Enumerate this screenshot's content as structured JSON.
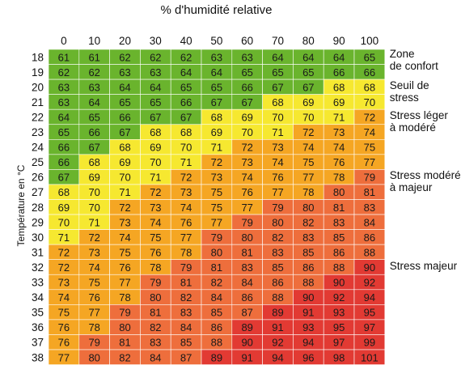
{
  "chart_data": {
    "type": "heatmap",
    "title": "% d'humidité relative",
    "ylabel": "Température en °C",
    "x": [
      0,
      10,
      20,
      30,
      40,
      50,
      60,
      70,
      80,
      90,
      100
    ],
    "y": [
      18,
      19,
      20,
      21,
      22,
      23,
      24,
      25,
      26,
      27,
      28,
      29,
      30,
      31,
      32,
      33,
      34,
      35,
      36,
      37,
      38
    ],
    "values": [
      [
        61,
        61,
        62,
        62,
        62,
        63,
        63,
        64,
        64,
        64,
        65
      ],
      [
        62,
        62,
        63,
        63,
        64,
        64,
        65,
        65,
        65,
        66,
        66
      ],
      [
        63,
        63,
        64,
        64,
        65,
        65,
        66,
        67,
        67,
        68,
        68
      ],
      [
        63,
        64,
        65,
        65,
        66,
        67,
        67,
        68,
        69,
        69,
        70
      ],
      [
        64,
        65,
        66,
        67,
        67,
        68,
        69,
        70,
        70,
        71,
        72
      ],
      [
        65,
        66,
        67,
        68,
        68,
        69,
        70,
        71,
        72,
        73,
        74
      ],
      [
        66,
        67,
        68,
        69,
        70,
        71,
        72,
        73,
        74,
        74,
        75
      ],
      [
        66,
        68,
        69,
        70,
        71,
        72,
        73,
        74,
        75,
        76,
        77
      ],
      [
        67,
        69,
        70,
        71,
        72,
        73,
        74,
        76,
        77,
        78,
        79
      ],
      [
        68,
        70,
        71,
        72,
        73,
        75,
        76,
        77,
        78,
        80,
        81
      ],
      [
        69,
        70,
        72,
        73,
        74,
        75,
        77,
        79,
        80,
        81,
        83
      ],
      [
        70,
        71,
        73,
        74,
        76,
        77,
        79,
        80,
        82,
        83,
        84
      ],
      [
        71,
        72,
        74,
        75,
        77,
        79,
        80,
        82,
        83,
        85,
        86
      ],
      [
        72,
        73,
        75,
        76,
        78,
        80,
        81,
        83,
        85,
        86,
        88
      ],
      [
        72,
        74,
        76,
        78,
        79,
        81,
        83,
        85,
        86,
        88,
        90
      ],
      [
        73,
        75,
        77,
        79,
        81,
        82,
        84,
        86,
        88,
        90,
        92
      ],
      [
        74,
        76,
        78,
        80,
        82,
        84,
        86,
        88,
        90,
        92,
        94
      ],
      [
        75,
        77,
        79,
        81,
        83,
        85,
        87,
        89,
        91,
        93,
        95
      ],
      [
        76,
        78,
        80,
        82,
        84,
        86,
        89,
        91,
        93,
        95,
        97
      ],
      [
        76,
        79,
        81,
        83,
        85,
        88,
        90,
        92,
        94,
        97,
        99
      ],
      [
        77,
        80,
        82,
        84,
        87,
        89,
        91,
        94,
        96,
        98,
        101
      ]
    ],
    "zones": [
      {
        "label": "Zone de confort",
        "lines": [
          "Zone",
          "de confort"
        ],
        "color": "#6ab42d"
      },
      {
        "label": "Seuil de stress",
        "lines": [
          "Seuil de stress"
        ],
        "color": "#f6e830"
      },
      {
        "label": "Stress léger à modéré",
        "lines": [
          "Stress léger",
          "à modéré"
        ],
        "color": "#f5a623"
      },
      {
        "label": "Stress modéré à majeur",
        "lines": [
          "Stress modéré",
          "à majeur"
        ],
        "color": "#ee6e3c"
      },
      {
        "label": "Stress majeur",
        "lines": [
          "Stress majeur"
        ],
        "color": "#e23a33"
      }
    ],
    "zone_thresholds": {
      "confort_max": 67,
      "seuil_max": 71,
      "leger_max": 78,
      "modere_max": 88
    },
    "grid": true
  }
}
